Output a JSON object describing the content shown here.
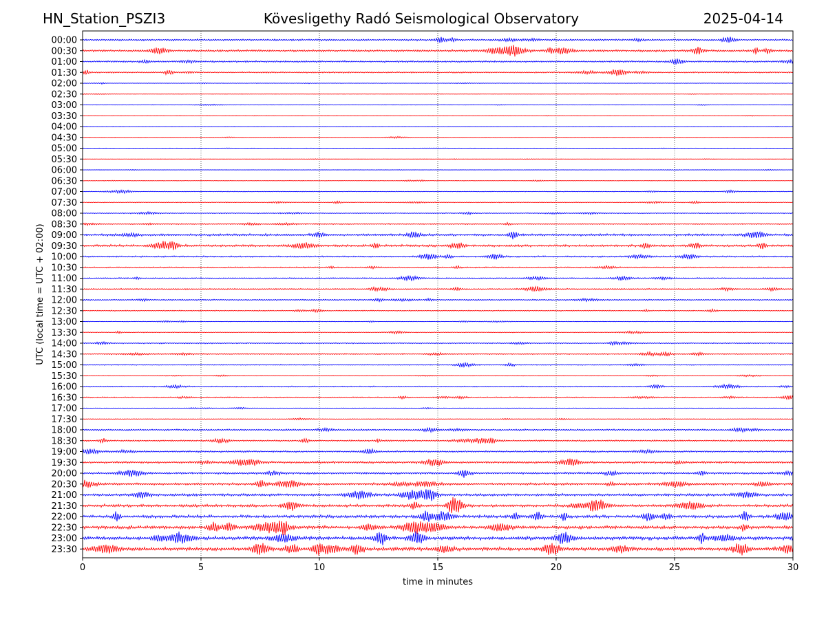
{
  "header": {
    "station": "HN_Station_PSZI3",
    "observatory": "Kövesligethy Radó Seismological Observatory",
    "date": "2025-04-14"
  },
  "chart_data": {
    "type": "line",
    "title": "Kövesligethy Radó Seismological Observatory",
    "xlabel": "time in minutes",
    "ylabel": "UTC (local time = UTC + 02:00)",
    "xlim": [
      0,
      30
    ],
    "x_ticks": [
      "0",
      "5",
      "10",
      "15",
      "20",
      "25",
      "30"
    ],
    "vertical_gridlines_at": [
      5,
      10,
      15,
      20,
      25
    ],
    "series_colors": [
      "#0000ff",
      "#ff0000"
    ],
    "rows": [
      {
        "label": "00:00",
        "amplitude": 0.45
      },
      {
        "label": "00:30",
        "amplitude": 0.55
      },
      {
        "label": "01:00",
        "amplitude": 0.45
      },
      {
        "label": "01:30",
        "amplitude": 0.35
      },
      {
        "label": "02:00",
        "amplitude": 0.12
      },
      {
        "label": "02:30",
        "amplitude": 0.08
      },
      {
        "label": "03:00",
        "amplitude": 0.08
      },
      {
        "label": "03:30",
        "amplitude": 0.06
      },
      {
        "label": "04:00",
        "amplitude": 0.05
      },
      {
        "label": "04:30",
        "amplitude": 0.08
      },
      {
        "label": "05:00",
        "amplitude": 0.05
      },
      {
        "label": "05:30",
        "amplitude": 0.05
      },
      {
        "label": "06:00",
        "amplitude": 0.08
      },
      {
        "label": "06:30",
        "amplitude": 0.12
      },
      {
        "label": "07:00",
        "amplitude": 0.18
      },
      {
        "label": "07:30",
        "amplitude": 0.2
      },
      {
        "label": "08:00",
        "amplitude": 0.25
      },
      {
        "label": "08:30",
        "amplitude": 0.3
      },
      {
        "label": "09:00",
        "amplitude": 0.6
      },
      {
        "label": "09:30",
        "amplitude": 0.6
      },
      {
        "label": "10:00",
        "amplitude": 0.4
      },
      {
        "label": "10:30",
        "amplitude": 0.3
      },
      {
        "label": "11:00",
        "amplitude": 0.3
      },
      {
        "label": "11:30",
        "amplitude": 0.3
      },
      {
        "label": "12:00",
        "amplitude": 0.3
      },
      {
        "label": "12:30",
        "amplitude": 0.25
      },
      {
        "label": "13:00",
        "amplitude": 0.15
      },
      {
        "label": "13:30",
        "amplitude": 0.2
      },
      {
        "label": "14:00",
        "amplitude": 0.3
      },
      {
        "label": "14:30",
        "amplitude": 0.3
      },
      {
        "label": "15:00",
        "amplitude": 0.25
      },
      {
        "label": "15:30",
        "amplitude": 0.15
      },
      {
        "label": "16:00",
        "amplitude": 0.3
      },
      {
        "label": "16:30",
        "amplitude": 0.3
      },
      {
        "label": "17:00",
        "amplitude": 0.15
      },
      {
        "label": "17:30",
        "amplitude": 0.15
      },
      {
        "label": "18:00",
        "amplitude": 0.4
      },
      {
        "label": "18:30",
        "amplitude": 0.4
      },
      {
        "label": "19:00",
        "amplitude": 0.45
      },
      {
        "label": "19:30",
        "amplitude": 0.55
      },
      {
        "label": "20:00",
        "amplitude": 0.55
      },
      {
        "label": "20:30",
        "amplitude": 0.6
      },
      {
        "label": "21:00",
        "amplitude": 0.7
      },
      {
        "label": "21:30",
        "amplitude": 0.75
      },
      {
        "label": "22:00",
        "amplitude": 0.8
      },
      {
        "label": "22:30",
        "amplitude": 0.85
      },
      {
        "label": "23:00",
        "amplitude": 0.95
      },
      {
        "label": "23:30",
        "amplitude": 0.95
      }
    ]
  }
}
